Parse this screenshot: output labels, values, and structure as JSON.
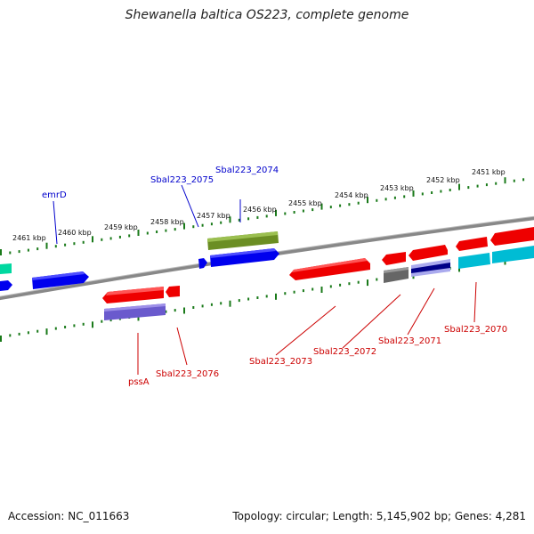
{
  "title": "Shewanella baltica OS223, complete genome",
  "accession": "Accession: NC_011663",
  "summary": "Topology: circular; Length: 5,145,902 bp; Genes: 4,281",
  "ticks": [
    "2451 kbp",
    "2452 kbp",
    "2453 kbp",
    "2454 kbp",
    "2455 kbp",
    "2456 kbp",
    "2457 kbp",
    "2458 kbp",
    "2459 kbp",
    "2460 kbp",
    "2461 kbp"
  ],
  "labels_top": [
    "Sbal223_2074",
    "Sbal223_2075",
    "emrD"
  ],
  "labels_bottom": [
    "Sbal223_2070",
    "Sbal223_2071",
    "Sbal223_2072",
    "Sbal223_2073",
    "Sbal223_2076",
    "pssA"
  ],
  "colors": {
    "backbone": "#777777",
    "tick": "#1a7a1a",
    "blue": "#0000ee",
    "red": "#ee0000",
    "olive": "#6b8e23",
    "lavender": "#6a5acd",
    "cyan": "#00bcd4",
    "teal": "#00d8a0",
    "gray": "#666666",
    "label_top": "#0000cc",
    "label_bottom": "#cc0000"
  }
}
